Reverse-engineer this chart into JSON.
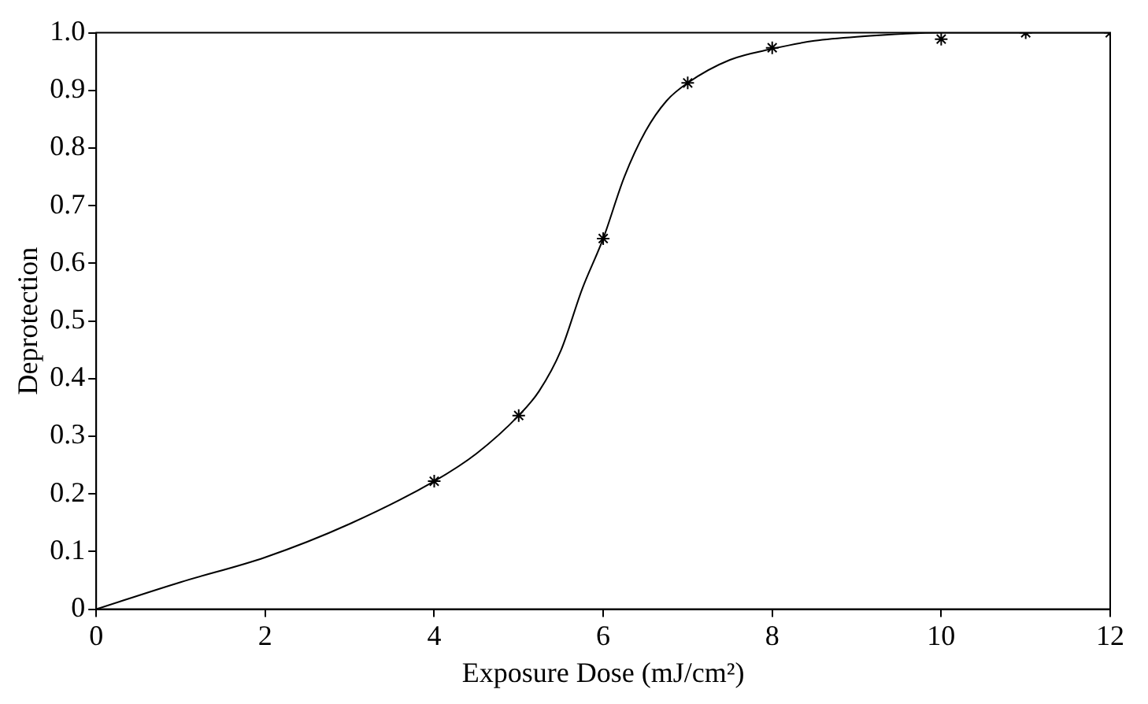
{
  "chart_data": {
    "type": "line",
    "xlabel": "Exposure Dose (mJ/cm²)",
    "ylabel": "Deprotection",
    "xlim": [
      0,
      12
    ],
    "xticks": [
      0,
      2,
      4,
      6,
      8,
      10,
      12
    ],
    "ylim": [
      0,
      1
    ],
    "yticks": [
      0,
      0.1,
      0.2,
      0.3,
      0.4,
      0.5,
      0.6,
      0.7,
      0.8,
      0.9,
      {
        "value": 1,
        "label": "1.0"
      }
    ],
    "grid": false,
    "legend": false,
    "series": [
      {
        "type": "line",
        "color": "#000000",
        "marker": "none",
        "line_style": "solid",
        "x": [
          0,
          1,
          2,
          3,
          4,
          4.5,
          5,
          5.24,
          5.5,
          5.75,
          6,
          6.25,
          6.5,
          6.75,
          7,
          7.5,
          8,
          8.5,
          9,
          10,
          11,
          12
        ],
        "values": [
          0,
          0.047,
          0.09,
          0.148,
          0.222,
          0.27,
          0.336,
          0.378,
          0.449,
          0.555,
          0.643,
          0.75,
          0.829,
          0.882,
          0.913,
          0.953,
          0.972,
          0.986,
          0.993,
          1,
          1,
          1
        ]
      },
      {
        "type": "scatter",
        "color": "#000000",
        "marker": "cross",
        "x": [
          4,
          5,
          6,
          7,
          8,
          10,
          11,
          12
        ],
        "values": [
          0.222,
          0.336,
          0.643,
          0.913,
          0.974,
          0.989,
          1,
          1
        ]
      }
    ]
  }
}
